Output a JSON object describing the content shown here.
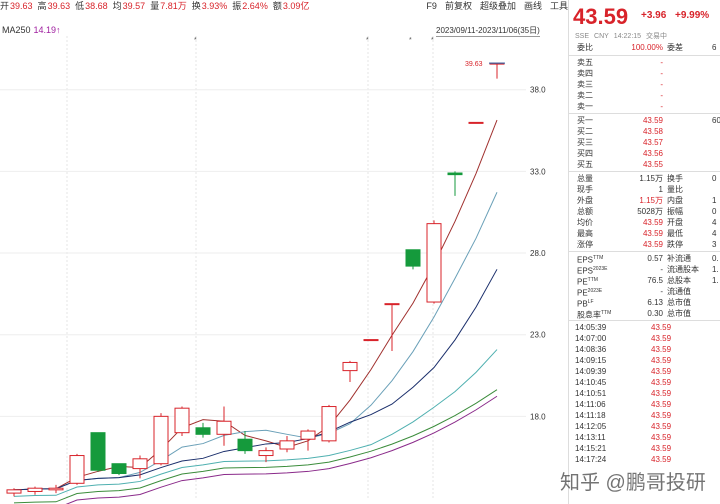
{
  "header": {
    "items": [
      {
        "label": "开",
        "value": "39.63"
      },
      {
        "label": "高",
        "value": "39.63"
      },
      {
        "label": "低",
        "value": "38.68"
      },
      {
        "label": "均",
        "value": "39.57"
      },
      {
        "label": "量",
        "value": "7.81万"
      },
      {
        "label": "换",
        "value": "3.93%"
      },
      {
        "label": "振",
        "value": "2.64%"
      },
      {
        "label": "额",
        "value": "3.09亿"
      }
    ],
    "toolbar": [
      "F9",
      "前复权",
      "超级叠加",
      "画线",
      "工具"
    ]
  },
  "ma": {
    "label": "MA250",
    "value": "14.19↑"
  },
  "date_range": "2023/09/11-2023/11/06(35日)",
  "chart_data": {
    "type": "candlestick",
    "y_ticks": [
      "38.0",
      "33.0",
      "28.0",
      "23.0",
      "18.0"
    ],
    "ylim": [
      13.0,
      40.8
    ],
    "last_price_label": "39.63",
    "candles": [
      {
        "o": 13.3,
        "h": 13.6,
        "l": 13.1,
        "c": 13.5
      },
      {
        "o": 13.4,
        "h": 13.7,
        "l": 13.2,
        "c": 13.6
      },
      {
        "o": 13.5,
        "h": 13.8,
        "l": 13.3,
        "c": 13.6
      },
      {
        "o": 13.9,
        "h": 15.7,
        "l": 13.8,
        "c": 15.6
      },
      {
        "o": 17.0,
        "h": 17.0,
        "l": 14.6,
        "c": 14.7
      },
      {
        "o": 15.1,
        "h": 15.1,
        "l": 14.4,
        "c": 14.5
      },
      {
        "o": 14.8,
        "h": 15.6,
        "l": 14.2,
        "c": 15.4
      },
      {
        "o": 15.1,
        "h": 18.2,
        "l": 15.0,
        "c": 18.0
      },
      {
        "o": 17.0,
        "h": 18.6,
        "l": 16.8,
        "c": 18.5
      },
      {
        "o": 17.3,
        "h": 17.6,
        "l": 16.7,
        "c": 16.9
      },
      {
        "o": 16.9,
        "h": 18.6,
        "l": 16.2,
        "c": 17.7
      },
      {
        "o": 16.6,
        "h": 17.1,
        "l": 15.7,
        "c": 15.9
      },
      {
        "o": 15.6,
        "h": 16.1,
        "l": 15.2,
        "c": 15.9
      },
      {
        "o": 16.0,
        "h": 16.8,
        "l": 15.8,
        "c": 16.5
      },
      {
        "o": 16.6,
        "h": 17.2,
        "l": 15.9,
        "c": 17.1
      },
      {
        "o": 16.5,
        "h": 18.7,
        "l": 16.4,
        "c": 18.6
      },
      {
        "o": 20.8,
        "h": 21.4,
        "l": 20.1,
        "c": 21.3
      },
      {
        "o": 22.7,
        "h": 22.7,
        "l": 22.7,
        "c": 22.7
      },
      {
        "o": 24.9,
        "h": 24.9,
        "l": 22.0,
        "c": 24.9
      },
      {
        "o": 28.2,
        "h": 28.2,
        "l": 27.0,
        "c": 27.2
      },
      {
        "o": 25.0,
        "h": 30.0,
        "l": 24.9,
        "c": 29.8
      },
      {
        "o": 32.9,
        "h": 33.0,
        "l": 31.5,
        "c": 32.8
      },
      {
        "o": 36.0,
        "h": 36.0,
        "l": 36.0,
        "c": 36.0
      },
      {
        "o": 39.6,
        "h": 39.63,
        "l": 38.68,
        "c": 39.63
      }
    ]
  },
  "quote": {
    "price": "43.59",
    "change": "+3.96",
    "pct": "+9.99%",
    "sub": [
      "SSE",
      "CNY",
      "14:22:15",
      "交易中"
    ],
    "ratio_label": "委比",
    "ratio_value": "100.00%",
    "diff_label": "委差",
    "diff_value": "6",
    "asks": [
      {
        "label": "卖五",
        "price": "-",
        "vol": ""
      },
      {
        "label": "卖四",
        "price": "-",
        "vol": ""
      },
      {
        "label": "卖三",
        "price": "-",
        "vol": ""
      },
      {
        "label": "卖二",
        "price": "-",
        "vol": ""
      },
      {
        "label": "卖一",
        "price": "-",
        "vol": ""
      }
    ],
    "bids": [
      {
        "label": "买一",
        "price": "43.59",
        "vol": "60"
      },
      {
        "label": "买二",
        "price": "43.58",
        "vol": ""
      },
      {
        "label": "买三",
        "price": "43.57",
        "vol": ""
      },
      {
        "label": "买四",
        "price": "43.56",
        "vol": ""
      },
      {
        "label": "买五",
        "price": "43.55",
        "vol": ""
      }
    ],
    "stats": [
      {
        "k": "总量",
        "v": "1.15万",
        "k2": "换手",
        "v2": "0",
        "red": false
      },
      {
        "k": "现手",
        "v": "1",
        "k2": "量比",
        "v2": "",
        "red": false
      },
      {
        "k": "外盘",
        "v": "1.15万",
        "k2": "内盘",
        "v2": "1",
        "red": true
      },
      {
        "k": "总额",
        "v": "5028万",
        "k2": "振幅",
        "v2": "0",
        "red": false
      },
      {
        "k": "均价",
        "v": "43.59",
        "k2": "开盘",
        "v2": "4",
        "red": true
      },
      {
        "k": "最高",
        "v": "43.59",
        "k2": "最低",
        "v2": "4",
        "red": true
      },
      {
        "k": "涨停",
        "v": "43.59",
        "k2": "跌停",
        "v2": "3",
        "red": true
      }
    ],
    "fundamentals": [
      {
        "k": "EPS",
        "sup": "TTM",
        "v": "0.57",
        "k2": "补流通",
        "v2": "0."
      },
      {
        "k": "EPS",
        "sup": "2023E",
        "v": "-",
        "k2": "流通股本",
        "v2": "1."
      },
      {
        "k": "PE",
        "sup": "TTM",
        "v": "76.5",
        "k2": "总股本",
        "v2": "1."
      },
      {
        "k": "PE",
        "sup": "2023E",
        "v": "-",
        "k2": "流通值",
        "v2": ""
      },
      {
        "k": "PB",
        "sup": "LF",
        "v": "6.13",
        "k2": "总市值",
        "v2": ""
      },
      {
        "k": "股息率",
        "sup": "TTM",
        "v": "0.30",
        "k2": "总市值",
        "v2": ""
      }
    ],
    "ticks": [
      {
        "t": "14:05:39",
        "p": "43.59"
      },
      {
        "t": "14:07:00",
        "p": "43.59"
      },
      {
        "t": "14:08:36",
        "p": "43.59"
      },
      {
        "t": "14:09:15",
        "p": "43.59"
      },
      {
        "t": "14:09:39",
        "p": "43.59"
      },
      {
        "t": "14:10:45",
        "p": "43.59"
      },
      {
        "t": "14:10:51",
        "p": "43.59"
      },
      {
        "t": "14:11:06",
        "p": "43.59"
      },
      {
        "t": "14:11:18",
        "p": "43.59"
      },
      {
        "t": "14:12:05",
        "p": "43.59"
      },
      {
        "t": "14:13:11",
        "p": "43.59"
      },
      {
        "t": "14:15:21",
        "p": "43.59"
      },
      {
        "t": "14:17:24",
        "p": "43.59"
      }
    ]
  },
  "watermark": "知乎 @鹏哥投研",
  "colors": {
    "up": "#d8232a",
    "down": "#159a3c",
    "ma": "#a020a0"
  }
}
